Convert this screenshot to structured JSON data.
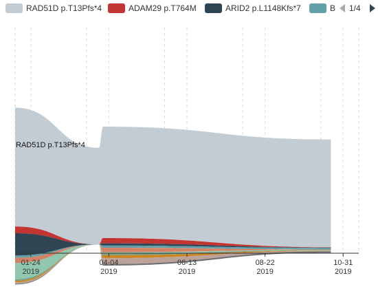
{
  "legend": {
    "items": [
      {
        "label": "RAD51D p.T13Pfs*4",
        "color": "#c4ccd3"
      },
      {
        "label": "ADAM29 p.T764M",
        "color": "#c23531"
      },
      {
        "label": "ARID2 p.L1148Kfs*7",
        "color": "#2f4554"
      },
      {
        "label": "B",
        "color": "#61a0a8"
      }
    ],
    "page": "1/4"
  },
  "chart_data": {
    "type": "area",
    "variant": "themeRiver",
    "x_axis": {
      "type": "time",
      "ticks": [
        {
          "date": "2019-01-24",
          "label": "01-24",
          "year": "2019"
        },
        {
          "date": "2019-04-04",
          "label": "04-04",
          "year": "2019"
        },
        {
          "date": "2019-06-13",
          "label": "06-13",
          "year": "2019"
        },
        {
          "date": "2019-08-22",
          "label": "08-22",
          "year": "2019"
        },
        {
          "date": "2019-10-31",
          "label": "10-31",
          "year": "2019"
        }
      ],
      "range": [
        "2019-01-10",
        "2019-11-14"
      ]
    },
    "y_axis_visible": false,
    "grid": true,
    "legend_position": "top",
    "annotations": [
      {
        "text": "RAD51D p.T13Pfs*4"
      }
    ],
    "dates": [
      "2019-01-10",
      "2019-03-26",
      "2019-03-30",
      "2019-10-20"
    ],
    "series": [
      {
        "name": "RAD51D p.T13Pfs*4",
        "color": "#c4ccd3",
        "values": [
          160,
          130,
          150,
          145
        ]
      },
      {
        "name": "ADAM29 p.T764M",
        "color": "#c23531",
        "values": [
          9,
          0,
          7,
          0.5
        ]
      },
      {
        "name": "ARID2 p.L1148Kfs*7",
        "color": "#2f4554",
        "values": [
          30,
          0,
          3,
          0.5
        ]
      },
      {
        "series_color_only": true,
        "color": "#61a0a8",
        "values": [
          3,
          0,
          3,
          2
        ]
      },
      {
        "color": "#d48265",
        "values": [
          7,
          0,
          6,
          0.5
        ]
      },
      {
        "color": "#91c7ae",
        "values": [
          22,
          0,
          2,
          0.5
        ]
      },
      {
        "color": "#749f83",
        "values": [
          2,
          0,
          2,
          0.5
        ]
      },
      {
        "color": "#ca8622",
        "values": [
          2,
          0,
          4,
          0.5
        ]
      },
      {
        "color": "#bda29a",
        "values": [
          2,
          0,
          8,
          0.5
        ]
      },
      {
        "color": "#6e7074",
        "values": [
          1,
          0,
          2,
          2
        ]
      }
    ]
  }
}
